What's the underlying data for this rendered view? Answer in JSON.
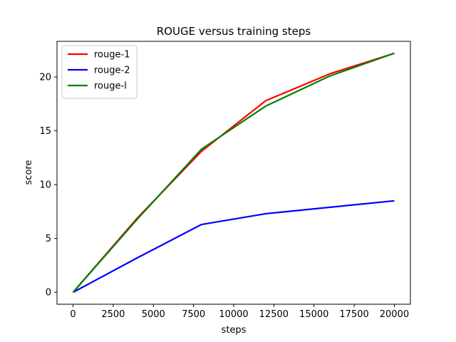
{
  "chart_data": {
    "type": "line",
    "title": "ROUGE versus training steps",
    "xlabel": "steps",
    "ylabel": "score",
    "xlim": [
      -1000,
      21000
    ],
    "ylim": [
      -1.11,
      23.31
    ],
    "xticks": [
      0,
      2500,
      5000,
      7500,
      10000,
      12500,
      15000,
      17500,
      20000
    ],
    "yticks": [
      0,
      5,
      10,
      15,
      20
    ],
    "grid": false,
    "legend_position": "top-left",
    "x": [
      0,
      4000,
      8000,
      12000,
      16000,
      20000
    ],
    "series": [
      {
        "name": "rouge-1",
        "color": "#ff0000",
        "values": [
          0,
          6.9,
          13.1,
          17.8,
          20.3,
          22.2
        ]
      },
      {
        "name": "rouge-2",
        "color": "#0000ff",
        "values": [
          0,
          3.2,
          6.3,
          7.3,
          7.9,
          8.5
        ]
      },
      {
        "name": "rouge-l",
        "color": "#008000",
        "values": [
          0,
          6.8,
          13.3,
          17.3,
          20.1,
          22.2
        ]
      }
    ]
  }
}
